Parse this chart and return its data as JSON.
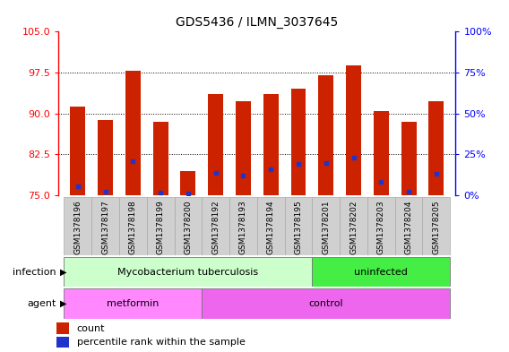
{
  "title": "GDS5436 / ILMN_3037645",
  "samples": [
    "GSM1378196",
    "GSM1378197",
    "GSM1378198",
    "GSM1378199",
    "GSM1378200",
    "GSM1378192",
    "GSM1378193",
    "GSM1378194",
    "GSM1378195",
    "GSM1378201",
    "GSM1378202",
    "GSM1378203",
    "GSM1378204",
    "GSM1378205"
  ],
  "count_values": [
    91.2,
    88.8,
    97.8,
    88.5,
    79.5,
    93.5,
    92.2,
    93.5,
    94.5,
    97.0,
    98.8,
    90.5,
    88.5,
    92.2
  ],
  "percentile_values": [
    5.5,
    2.5,
    21.0,
    1.5,
    1.0,
    14.0,
    12.0,
    16.0,
    19.0,
    20.0,
    23.0,
    8.0,
    2.5,
    13.0
  ],
  "ymin": 75,
  "ymax": 105,
  "yticks": [
    75,
    82.5,
    90,
    97.5,
    105
  ],
  "y2min": 0,
  "y2max": 100,
  "y2ticks": [
    0,
    25,
    50,
    75,
    100
  ],
  "bar_color": "#cc2200",
  "percentile_color": "#2233cc",
  "bar_width": 0.55,
  "infection_groups": [
    {
      "label": "Mycobacterium tuberculosis",
      "start": 0,
      "end": 9,
      "color": "#ccffcc"
    },
    {
      "label": "uninfected",
      "start": 9,
      "end": 14,
      "color": "#44ee44"
    }
  ],
  "agent_groups": [
    {
      "label": "metformin",
      "start": 0,
      "end": 5,
      "color": "#ff88ff"
    },
    {
      "label": "control",
      "start": 5,
      "end": 14,
      "color": "#ee66ee"
    }
  ],
  "infection_label": "infection",
  "agent_label": "agent",
  "legend_count_label": "count",
  "legend_percentile_label": "percentile rank within the sample",
  "title_fontsize": 10,
  "background_color": "#ffffff",
  "xticklabel_bg": "#d0d0d0",
  "xticklabel_fontsize": 6.5,
  "grid_color": "#000000",
  "ytick_fontsize": 8,
  "annotation_fontsize": 8
}
